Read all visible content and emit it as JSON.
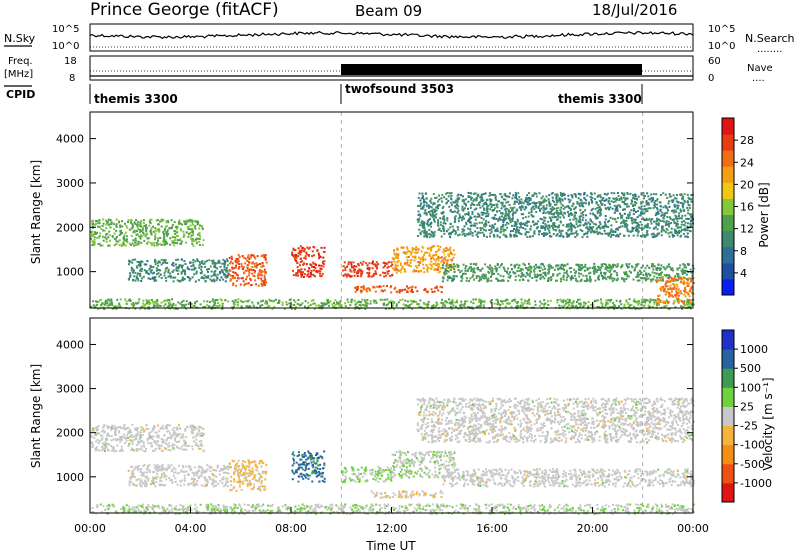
{
  "header": {
    "site": "Prince George (fitACF)",
    "beam": "Beam 09",
    "date": "18/Jul/2016"
  },
  "panels": {
    "nsky_label": "N.Sky",
    "nsearch_label": "N.Search",
    "nsearch_legend": "........",
    "nsky_ticks": [
      "10^5",
      "10^0"
    ],
    "nsearch_ticks": [
      "10^5",
      "10^0"
    ],
    "freq_label_1": "Freq.",
    "freq_label_2": "[MHz]",
    "freq_ticks": [
      "18",
      "8"
    ],
    "nave_label": "Nave",
    "nave_legend": "....",
    "nave_ticks": [
      "60",
      "0"
    ],
    "cpid_label": "CPID",
    "cpid_segments": [
      {
        "name": "themis 3300",
        "start_h": 0,
        "end_h": 10
      },
      {
        "name": "twofsound 3503",
        "start_h": 10,
        "end_h": 22
      },
      {
        "name": "themis 3300",
        "start_h": 22,
        "end_h": 24
      }
    ]
  },
  "axes": {
    "xlabel": "Time UT",
    "xticks": [
      "00:00",
      "04:00",
      "08:00",
      "12:00",
      "16:00",
      "20:00",
      "00:00"
    ],
    "ylabel": "Slant Range [km]",
    "yticks": [
      "1000",
      "2000",
      "3000",
      "4000"
    ],
    "power_colorbar_label": "Power [dB]",
    "power_colorbar_ticks": [
      "4",
      "8",
      "12",
      "16",
      "20",
      "24",
      "28"
    ],
    "velocity_colorbar_label": "Velocity [m s⁻¹]",
    "velocity_colorbar_ticks": [
      "1000",
      "500",
      "100",
      "25",
      "-25",
      "-100",
      "-500",
      "-1000"
    ]
  },
  "chart_data": [
    {
      "type": "heatmap",
      "name": "Power",
      "xlim": [
        0,
        24
      ],
      "ylim": [
        180,
        4600
      ],
      "units": "dB",
      "clim": [
        0,
        32
      ],
      "grid": false,
      "colors": [
        "#0a1ef0",
        "#1e50a0",
        "#2e6e98",
        "#3d8a6e",
        "#4fa04a",
        "#82c83a",
        "#f0c814",
        "#f5a014",
        "#f06e14",
        "#e83c12",
        "#e01414"
      ],
      "scatter_bands": [
        {
          "t": [
            0,
            4.5
          ],
          "r": [
            1600,
            2200
          ],
          "value": 14
        },
        {
          "t": [
            1.5,
            5.5
          ],
          "r": [
            800,
            1300
          ],
          "value": 10
        },
        {
          "t": [
            5.5,
            7.0
          ],
          "r": [
            700,
            1400
          ],
          "value": 26
        },
        {
          "t": [
            8.0,
            9.3
          ],
          "r": [
            900,
            1600
          ],
          "value": 28
        },
        {
          "t": [
            10.0,
            12.0
          ],
          "r": [
            900,
            1250
          ],
          "value": 28
        },
        {
          "t": [
            10.5,
            14.0
          ],
          "r": [
            550,
            700
          ],
          "value": 26
        },
        {
          "t": [
            12.0,
            14.5
          ],
          "r": [
            1000,
            1600
          ],
          "value": 22
        },
        {
          "t": [
            13.0,
            24.0
          ],
          "r": [
            1800,
            2800
          ],
          "value": 10
        },
        {
          "t": [
            14.0,
            24.0
          ],
          "r": [
            800,
            1200
          ],
          "value": 12
        },
        {
          "t": [
            0,
            24.0
          ],
          "r": [
            180,
            400
          ],
          "value": 14
        },
        {
          "t": [
            22.5,
            24.0
          ],
          "r": [
            300,
            900
          ],
          "value": 24
        }
      ]
    },
    {
      "type": "heatmap",
      "name": "Velocity",
      "xlim": [
        0,
        24
      ],
      "ylim": [
        180,
        4600
      ],
      "units": "m s^-1",
      "clim": [
        -1000,
        1000
      ],
      "grid": false,
      "colors": [
        "#e01414",
        "#f05014",
        "#f58c14",
        "#f5b43c",
        "#c8c8c8",
        "#6ed23c",
        "#3c9c50",
        "#2864a0",
        "#1e32c8"
      ],
      "scatter_bands": [
        {
          "t": [
            0,
            4.5
          ],
          "r": [
            1600,
            2200
          ],
          "value": 0
        },
        {
          "t": [
            1.5,
            5.5
          ],
          "r": [
            800,
            1300
          ],
          "value": 0
        },
        {
          "t": [
            5.5,
            7.0
          ],
          "r": [
            700,
            1400
          ],
          "value": -150
        },
        {
          "t": [
            8.0,
            9.3
          ],
          "r": [
            900,
            1600
          ],
          "value": 600
        },
        {
          "t": [
            10.0,
            12.0
          ],
          "r": [
            900,
            1250
          ],
          "value": 120
        },
        {
          "t": [
            11.0,
            14.0
          ],
          "r": [
            550,
            700
          ],
          "value": -80
        },
        {
          "t": [
            12.0,
            14.5
          ],
          "r": [
            1000,
            1600
          ],
          "value": 60
        },
        {
          "t": [
            13.0,
            24.0
          ],
          "r": [
            1800,
            2800
          ],
          "value": 0
        },
        {
          "t": [
            14.0,
            24.0
          ],
          "r": [
            800,
            1200
          ],
          "value": 0
        },
        {
          "t": [
            0,
            24.0
          ],
          "r": [
            180,
            400
          ],
          "value": 80
        }
      ]
    }
  ]
}
